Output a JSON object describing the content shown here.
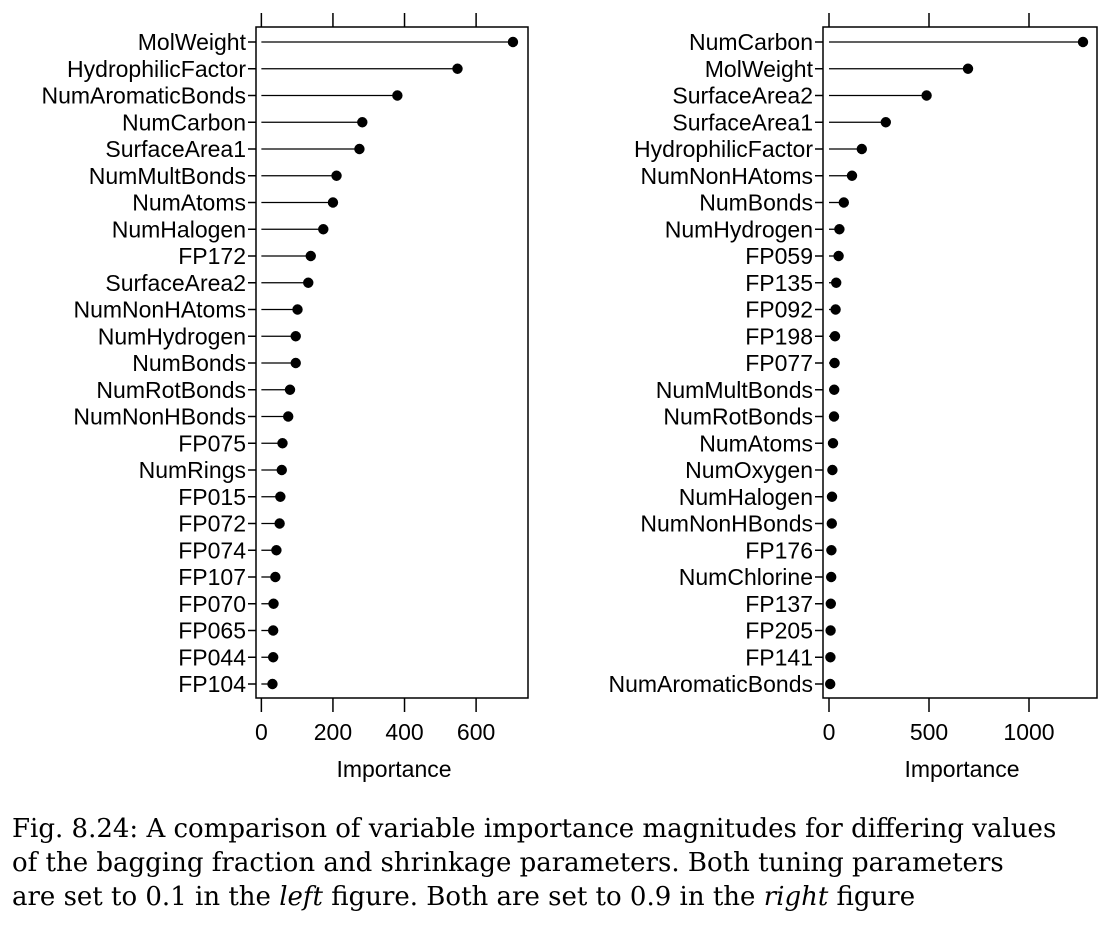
{
  "chart_data": [
    {
      "type": "lollipop",
      "xlabel": "Importance",
      "ylabel": "",
      "xlim": [
        -15,
        745
      ],
      "xticks": [
        0,
        200,
        400,
        600
      ],
      "xticklabels": [
        "0",
        "200",
        "400",
        "600"
      ],
      "grid": false,
      "categories": [
        "MolWeight",
        "HydrophilicFactor",
        "NumAromaticBonds",
        "NumCarbon",
        "SurfaceArea1",
        "NumMultBonds",
        "NumAtoms",
        "NumHalogen",
        "FP172",
        "SurfaceArea2",
        "NumNonHAtoms",
        "NumHydrogen",
        "NumBonds",
        "NumRotBonds",
        "NumNonHBonds",
        "FP075",
        "NumRings",
        "FP015",
        "FP072",
        "FP074",
        "FP107",
        "FP070",
        "FP065",
        "FP044",
        "FP104"
      ],
      "values": [
        703,
        548,
        380,
        282,
        274,
        210,
        200,
        173,
        138,
        131,
        101,
        96,
        96,
        80,
        75,
        59,
        57,
        53,
        51,
        42,
        39,
        34,
        33,
        33,
        31
      ]
    },
    {
      "type": "lollipop",
      "xlabel": "Importance",
      "ylabel": "",
      "xlim": [
        -30,
        1340
      ],
      "xticks": [
        0,
        500,
        1000
      ],
      "xticklabels": [
        "0",
        "500",
        "1000"
      ],
      "grid": false,
      "categories": [
        "NumCarbon",
        "MolWeight",
        "SurfaceArea2",
        "SurfaceArea1",
        "HydrophilicFactor",
        "NumNonHAtoms",
        "NumBonds",
        "NumHydrogen",
        "FP059",
        "FP135",
        "FP092",
        "FP198",
        "FP077",
        "NumMultBonds",
        "NumRotBonds",
        "NumAtoms",
        "NumOxygen",
        "NumHalogen",
        "NumNonHBonds",
        "FP176",
        "NumChlorine",
        "FP137",
        "FP205",
        "FP141",
        "NumAromaticBonds"
      ],
      "values": [
        1270,
        695,
        488,
        284,
        164,
        115,
        74,
        52,
        48,
        36,
        33,
        30,
        28,
        26,
        25,
        20,
        17,
        15,
        14,
        12,
        11,
        9,
        8,
        7,
        6
      ]
    }
  ],
  "caption": {
    "line1": "Fig. 8.24: A comparison of variable importance magnitudes for differing values",
    "line2": "of the bagging fraction and shrinkage parameters. Both tuning parameters",
    "line3_a": "are set to 0.1 in the ",
    "line3_em1": "left",
    "line3_b": " figure. Both are set to 0.9 in the ",
    "line3_em2": "right",
    "line3_c": " figure"
  }
}
